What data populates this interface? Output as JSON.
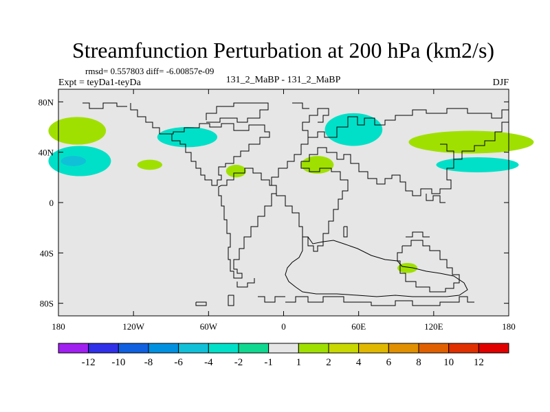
{
  "chart_data": {
    "type": "contour-map",
    "title": "Streamfunction Perturbation at 200 hPa (km2/s)",
    "stats_text": "rmsd= 0.557803 diff= -6.00857e-09",
    "left_label": "Expt = teyDa1-teyDa",
    "center_label": "131_2_MaBP - 131_2_MaBP",
    "right_label": "DJF",
    "x_ticks": [
      {
        "lon": -180,
        "label": "180"
      },
      {
        "lon": -120,
        "label": "120W"
      },
      {
        "lon": -60,
        "label": "60W"
      },
      {
        "lon": 0,
        "label": "0"
      },
      {
        "lon": 60,
        "label": "60E"
      },
      {
        "lon": 120,
        "label": "120E"
      },
      {
        "lon": 180,
        "label": "180"
      }
    ],
    "y_ticks": [
      {
        "lat": 80,
        "label": "80N"
      },
      {
        "lat": 40,
        "label": "40N"
      },
      {
        "lat": 0,
        "label": "0"
      },
      {
        "lat": -40,
        "label": "40S"
      },
      {
        "lat": -80,
        "label": "80S"
      }
    ],
    "xlim": [
      -180,
      180
    ],
    "ylim": [
      -90,
      90
    ],
    "colorbar": {
      "colors": [
        "#a020f0",
        "#3030e8",
        "#1060e0",
        "#0090e0",
        "#10c0d8",
        "#00e0c8",
        "#10d890",
        "#e6e6e6",
        "#a0e000",
        "#c8d800",
        "#e0b800",
        "#e09000",
        "#e06000",
        "#e03000",
        "#e00000"
      ],
      "labels": [
        "-12",
        "-10",
        "-8",
        "-6",
        "-4",
        "-2",
        "-1",
        "1",
        "2",
        "4",
        "6",
        "8",
        "10",
        "12"
      ]
    },
    "anomalies": [
      {
        "name": "neg-180-55N",
        "lon": -165,
        "lat": 57,
        "rlon": 23,
        "rlat": 11,
        "color": "#a0e000"
      },
      {
        "name": "neg-180-35N",
        "lon": -163,
        "lat": 33,
        "rlon": 25,
        "rlat": 12,
        "color": "#00e0c8"
      },
      {
        "name": "core-180-35N",
        "lon": -168,
        "lat": 33,
        "rlon": 10,
        "rlat": 4,
        "color": "#10c0d8"
      },
      {
        "name": "pos-110W-30N",
        "lon": -107,
        "lat": 30,
        "rlon": 10,
        "rlat": 4,
        "color": "#a0e000"
      },
      {
        "name": "neg-70W-52N",
        "lon": -77,
        "lat": 52,
        "rlon": 24,
        "rlat": 8,
        "color": "#00e0c8"
      },
      {
        "name": "pos-40W-25N",
        "lon": -38,
        "lat": 25,
        "rlon": 8,
        "rlat": 5,
        "color": "#a0e000"
      },
      {
        "name": "pos-30E-30N",
        "lon": 27,
        "lat": 30,
        "rlon": 13,
        "rlat": 7,
        "color": "#a0e000"
      },
      {
        "name": "neg-55E-58N",
        "lon": 56,
        "lat": 58,
        "rlon": 23,
        "rlat": 13,
        "color": "#00e0c8"
      },
      {
        "name": "pos-150E-50N",
        "lon": 150,
        "lat": 48,
        "rlon": 50,
        "rlat": 9,
        "color": "#a0e000"
      },
      {
        "name": "neg-150E-30N",
        "lon": 155,
        "lat": 30,
        "rlon": 33,
        "rlat": 6,
        "color": "#00e0c8"
      },
      {
        "name": "pos-100E-52S",
        "lon": 99,
        "lat": -52,
        "rlon": 8,
        "rlat": 4,
        "color": "#a0e000"
      }
    ]
  }
}
